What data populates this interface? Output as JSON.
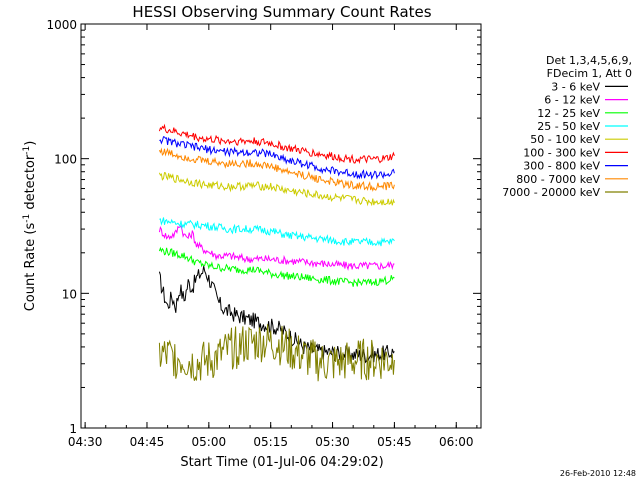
{
  "chart_data": {
    "type": "line",
    "title": "HESSI Observing Summary Count Rates",
    "xlabel": "Start Time (01-Jul-06 04:29:02)",
    "ylabel_main": "Count Rate (s",
    "ylabel_sup": "-1",
    "ylabel_mid": " detector",
    "ylabel_sup2": "-1",
    "ylabel_end": ")",
    "timestamp": "26-Feb-2010 12:48",
    "yscale": "log",
    "xlim": [
      0,
      97
    ],
    "ylim": [
      1,
      1000
    ],
    "xticks": [
      {
        "t": 1,
        "label": "04:30"
      },
      {
        "t": 16,
        "label": "04:45"
      },
      {
        "t": 31,
        "label": "05:00"
      },
      {
        "t": 46,
        "label": "05:15"
      },
      {
        "t": 61,
        "label": "05:30"
      },
      {
        "t": 76,
        "label": "05:45"
      },
      {
        "t": 91,
        "label": "06:00"
      }
    ],
    "yticks": [
      {
        "v": 1,
        "label": "1"
      },
      {
        "v": 10,
        "label": "10"
      },
      {
        "v": 100,
        "label": "100"
      },
      {
        "v": 1000,
        "label": "1000"
      }
    ],
    "legend_header": [
      "Det 1,3,4,5,6,9,",
      "FDecim 1, Att 0"
    ],
    "series": [
      {
        "name": "3 - 6 keV",
        "color": "#000000",
        "points": [
          [
            19,
            13
          ],
          [
            20,
            10
          ],
          [
            21,
            8
          ],
          [
            22,
            9.5
          ],
          [
            23,
            8
          ],
          [
            24,
            11
          ],
          [
            25,
            9
          ],
          [
            26,
            12
          ],
          [
            27,
            11
          ],
          [
            28,
            13
          ],
          [
            29,
            14
          ],
          [
            30,
            15
          ],
          [
            31,
            13
          ],
          [
            32,
            11
          ],
          [
            33,
            9
          ],
          [
            34,
            8
          ],
          [
            35,
            7.5
          ],
          [
            37,
            7
          ],
          [
            40,
            6.5
          ],
          [
            44,
            6
          ],
          [
            48,
            5.5
          ],
          [
            50,
            5
          ],
          [
            52,
            4.5
          ],
          [
            54,
            4
          ],
          [
            58,
            3.7
          ],
          [
            62,
            3.6
          ],
          [
            66,
            3.5
          ],
          [
            70,
            3.5
          ],
          [
            74,
            3.6
          ],
          [
            76,
            3.7
          ]
        ]
      },
      {
        "name": "6 - 12 keV",
        "color": "#ff00ff",
        "points": [
          [
            19,
            30
          ],
          [
            21,
            26
          ],
          [
            23,
            28
          ],
          [
            24,
            33
          ],
          [
            25,
            27
          ],
          [
            26,
            26
          ],
          [
            27,
            28
          ],
          [
            28,
            23
          ],
          [
            30,
            21
          ],
          [
            33,
            19
          ],
          [
            36,
            19
          ],
          [
            40,
            18
          ],
          [
            45,
            18
          ],
          [
            50,
            17.5
          ],
          [
            55,
            17
          ],
          [
            60,
            16.5
          ],
          [
            65,
            16
          ],
          [
            70,
            16
          ],
          [
            74,
            16
          ],
          [
            76,
            16.5
          ]
        ]
      },
      {
        "name": "12 - 25 keV",
        "color": "#00ff00",
        "points": [
          [
            19,
            21
          ],
          [
            22,
            20
          ],
          [
            25,
            19
          ],
          [
            28,
            17
          ],
          [
            31,
            16
          ],
          [
            34,
            15.5
          ],
          [
            38,
            15
          ],
          [
            42,
            15
          ],
          [
            46,
            14
          ],
          [
            50,
            13.5
          ],
          [
            55,
            13
          ],
          [
            60,
            12.5
          ],
          [
            65,
            12
          ],
          [
            70,
            12
          ],
          [
            74,
            12.5
          ],
          [
            76,
            13
          ]
        ]
      },
      {
        "name": "25 - 50 keV",
        "color": "#00ffff",
        "points": [
          [
            19,
            35
          ],
          [
            24,
            33
          ],
          [
            30,
            32
          ],
          [
            36,
            30
          ],
          [
            42,
            30
          ],
          [
            46,
            29
          ],
          [
            50,
            27
          ],
          [
            55,
            26
          ],
          [
            60,
            25
          ],
          [
            65,
            24
          ],
          [
            70,
            24
          ],
          [
            74,
            24
          ],
          [
            76,
            24.5
          ]
        ]
      },
      {
        "name": "50 - 100 keV",
        "color": "#cccc00",
        "points": [
          [
            19,
            75
          ],
          [
            24,
            70
          ],
          [
            30,
            64
          ],
          [
            36,
            62
          ],
          [
            42,
            63
          ],
          [
            46,
            62
          ],
          [
            50,
            58
          ],
          [
            55,
            55
          ],
          [
            60,
            52
          ],
          [
            65,
            50
          ],
          [
            70,
            48
          ],
          [
            74,
            48
          ],
          [
            76,
            47
          ]
        ]
      },
      {
        "name": "100 - 300 keV",
        "color": "#ff0000",
        "points": [
          [
            19,
            170
          ],
          [
            24,
            155
          ],
          [
            30,
            140
          ],
          [
            36,
            135
          ],
          [
            42,
            135
          ],
          [
            46,
            130
          ],
          [
            50,
            120
          ],
          [
            55,
            112
          ],
          [
            60,
            105
          ],
          [
            65,
            100
          ],
          [
            70,
            98
          ],
          [
            74,
            100
          ],
          [
            76,
            105
          ]
        ]
      },
      {
        "name": "300 - 800 keV",
        "color": "#0000ff",
        "points": [
          [
            19,
            140
          ],
          [
            24,
            128
          ],
          [
            30,
            118
          ],
          [
            36,
            112
          ],
          [
            42,
            112
          ],
          [
            46,
            108
          ],
          [
            50,
            98
          ],
          [
            55,
            90
          ],
          [
            60,
            82
          ],
          [
            65,
            78
          ],
          [
            70,
            76
          ],
          [
            74,
            76
          ],
          [
            76,
            78
          ]
        ]
      },
      {
        "name": "800 - 7000 keV",
        "color": "#ff8800",
        "points": [
          [
            19,
            115
          ],
          [
            24,
            105
          ],
          [
            30,
            96
          ],
          [
            36,
            92
          ],
          [
            42,
            92
          ],
          [
            46,
            88
          ],
          [
            50,
            80
          ],
          [
            55,
            74
          ],
          [
            60,
            68
          ],
          [
            65,
            64
          ],
          [
            70,
            62
          ],
          [
            74,
            62
          ],
          [
            76,
            64
          ]
        ]
      },
      {
        "name": "7000 - 20000 keV",
        "color": "#808000",
        "points": [
          [
            19,
            3.5
          ],
          [
            24,
            3.3
          ],
          [
            28,
            3
          ],
          [
            32,
            3.2
          ],
          [
            36,
            3.8
          ],
          [
            40,
            4.2
          ],
          [
            44,
            4.4
          ],
          [
            48,
            4.2
          ],
          [
            52,
            3.6
          ],
          [
            56,
            3.2
          ],
          [
            60,
            3
          ],
          [
            64,
            3.1
          ],
          [
            68,
            3.2
          ],
          [
            72,
            3.2
          ],
          [
            76,
            3.2
          ]
        ]
      }
    ]
  }
}
